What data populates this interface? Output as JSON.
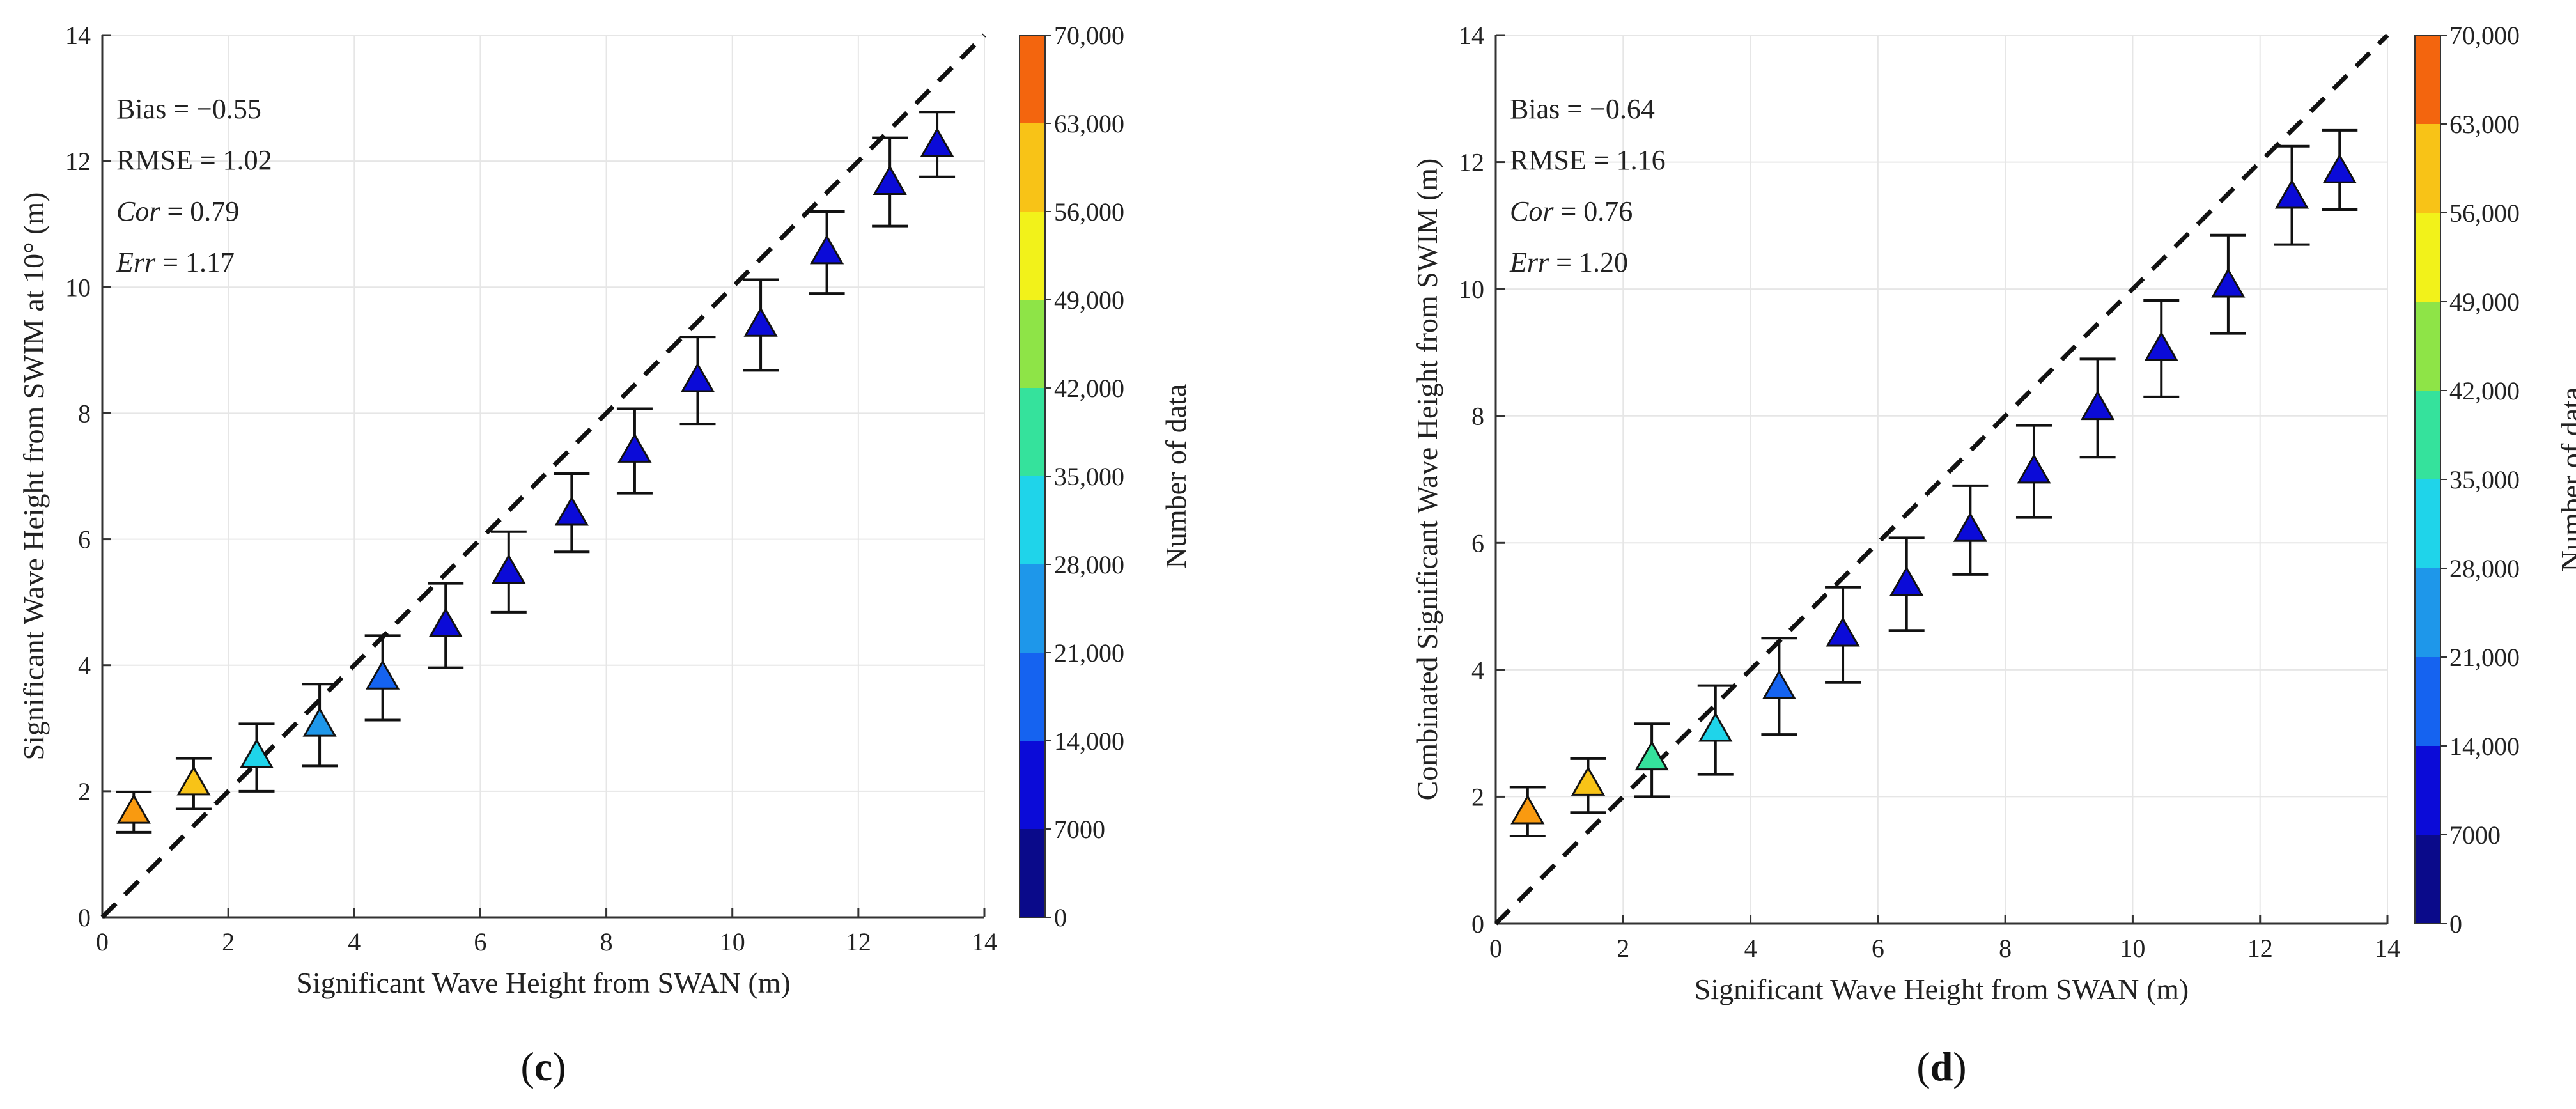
{
  "chart_data": [
    {
      "type": "scatter",
      "panel_label": "c",
      "xlabel": "Significant Wave Height from SWAN (m)",
      "ylabel": "Significant Wave Height from SWIM at 10° (m)",
      "xlim": [
        0,
        14
      ],
      "ylim": [
        0,
        14
      ],
      "xticks": [
        "0",
        "2",
        "4",
        "6",
        "8",
        "10",
        "12",
        "14"
      ],
      "yticks": [
        "0",
        "2",
        "4",
        "6",
        "8",
        "10",
        "12",
        "14"
      ],
      "grid": true,
      "reference_line": "1:1 dashed",
      "stats": {
        "bias": "Bias = −0.55",
        "rmse": "RMSE = 1.02",
        "cor_name": "Cor",
        "cor_value": " = 0.79",
        "err_name": "Err",
        "err_value": " = 1.17"
      },
      "colorbar": {
        "label": "Number of data",
        "range": [
          0,
          70000
        ],
        "ticks": [
          "0",
          "7000",
          "14,000",
          "21,000",
          "28,000",
          "35,000",
          "42,000",
          "49,000",
          "56,000",
          "63,000",
          "70,000"
        ]
      },
      "points": [
        {
          "x": 0.5,
          "y": 1.67,
          "lower": 1.35,
          "upper": 1.99,
          "count": 65000
        },
        {
          "x": 1.45,
          "y": 2.12,
          "lower": 1.72,
          "upper": 2.52,
          "count": 58000
        },
        {
          "x": 2.45,
          "y": 2.55,
          "lower": 2.0,
          "upper": 3.07,
          "count": 33000
        },
        {
          "x": 3.45,
          "y": 3.05,
          "lower": 2.4,
          "upper": 3.7,
          "count": 21000
        },
        {
          "x": 4.45,
          "y": 3.8,
          "lower": 3.13,
          "upper": 4.47,
          "count": 17500
        },
        {
          "x": 5.45,
          "y": 4.63,
          "lower": 3.96,
          "upper": 5.3,
          "count": 12000
        },
        {
          "x": 6.45,
          "y": 5.48,
          "lower": 4.84,
          "upper": 6.12,
          "count": 10000
        },
        {
          "x": 7.45,
          "y": 6.4,
          "lower": 5.8,
          "upper": 7.04,
          "count": 10000
        },
        {
          "x": 8.45,
          "y": 7.4,
          "lower": 6.73,
          "upper": 8.07,
          "count": 10000
        },
        {
          "x": 9.45,
          "y": 8.52,
          "lower": 7.83,
          "upper": 9.21,
          "count": 10000
        },
        {
          "x": 10.45,
          "y": 9.4,
          "lower": 8.68,
          "upper": 10.12,
          "count": 10000
        },
        {
          "x": 11.5,
          "y": 10.55,
          "lower": 9.9,
          "upper": 11.2,
          "count": 10000
        },
        {
          "x": 12.5,
          "y": 11.65,
          "lower": 10.97,
          "upper": 12.37,
          "count": 10000
        },
        {
          "x": 13.25,
          "y": 12.25,
          "lower": 11.75,
          "upper": 12.78,
          "count": 10000
        }
      ]
    },
    {
      "type": "scatter",
      "panel_label": "d",
      "xlabel": "Significant Wave Height from SWAN (m)",
      "ylabel": "Combinated Significant Wave Height from SWIM (m)",
      "xlim": [
        0,
        14
      ],
      "ylim": [
        0,
        14
      ],
      "xticks": [
        "0",
        "2",
        "4",
        "6",
        "8",
        "10",
        "12",
        "14"
      ],
      "yticks": [
        "0",
        "2",
        "4",
        "6",
        "8",
        "10",
        "12",
        "14"
      ],
      "grid": true,
      "reference_line": "1:1 dashed",
      "stats": {
        "bias": "Bias = −0.64",
        "rmse": "RMSE = 1.16",
        "cor_name": "Cor",
        "cor_value": " = 0.76",
        "err_name": "Err",
        "err_value": " = 1.20"
      },
      "colorbar": {
        "label": "Number of data",
        "range": [
          0,
          70000
        ],
        "ticks": [
          "0",
          "7000",
          "14,000",
          "21,000",
          "28,000",
          "35,000",
          "42,000",
          "49,000",
          "56,000",
          "63,000",
          "70,000"
        ]
      },
      "points": [
        {
          "x": 0.5,
          "y": 1.75,
          "lower": 1.38,
          "upper": 2.15,
          "count": 65000
        },
        {
          "x": 1.45,
          "y": 2.2,
          "lower": 1.75,
          "upper": 2.6,
          "count": 59000
        },
        {
          "x": 2.45,
          "y": 2.6,
          "lower": 2.0,
          "upper": 3.15,
          "count": 40000
        },
        {
          "x": 3.45,
          "y": 3.05,
          "lower": 2.35,
          "upper": 3.75,
          "count": 30000
        },
        {
          "x": 4.45,
          "y": 3.72,
          "lower": 2.98,
          "upper": 4.5,
          "count": 14500
        },
        {
          "x": 5.45,
          "y": 4.55,
          "lower": 3.8,
          "upper": 5.3,
          "count": 10000
        },
        {
          "x": 6.45,
          "y": 5.35,
          "lower": 4.62,
          "upper": 6.08,
          "count": 10000
        },
        {
          "x": 7.45,
          "y": 6.2,
          "lower": 5.5,
          "upper": 6.9,
          "count": 10000
        },
        {
          "x": 8.45,
          "y": 7.12,
          "lower": 6.4,
          "upper": 7.85,
          "count": 10000
        },
        {
          "x": 9.45,
          "y": 8.12,
          "lower": 7.35,
          "upper": 8.9,
          "count": 10000
        },
        {
          "x": 10.45,
          "y": 9.05,
          "lower": 8.3,
          "upper": 9.82,
          "count": 10000
        },
        {
          "x": 11.5,
          "y": 10.05,
          "lower": 9.3,
          "upper": 10.85,
          "count": 10000
        },
        {
          "x": 12.5,
          "y": 11.45,
          "lower": 10.7,
          "upper": 12.25,
          "count": 10000
        },
        {
          "x": 13.25,
          "y": 11.85,
          "lower": 11.25,
          "upper": 12.5,
          "count": 10000
        }
      ]
    }
  ]
}
